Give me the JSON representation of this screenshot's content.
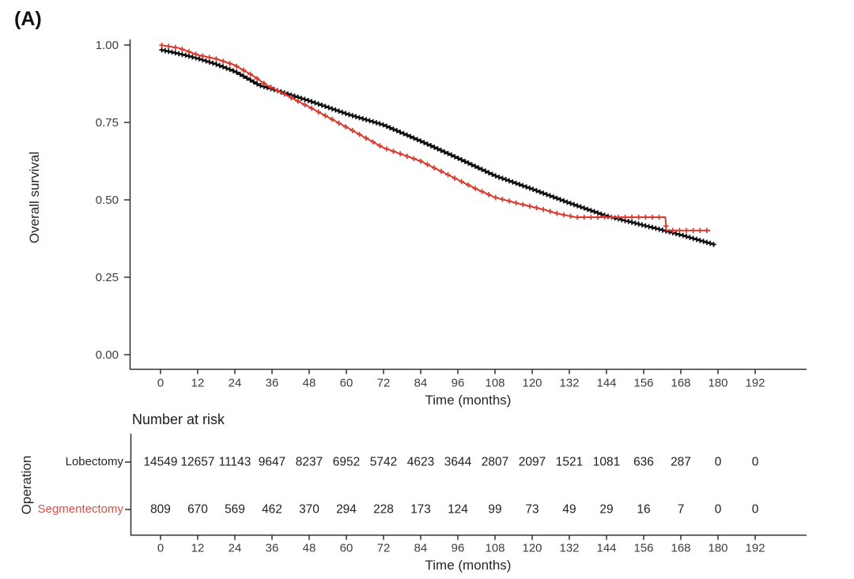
{
  "figure": {
    "panel_label": "(A)"
  },
  "chart_data": {
    "type": "line",
    "subtype": "kaplan-meier-survival",
    "title": "",
    "xlabel": "Time (months)",
    "ylabel": "Overall survival",
    "xlim": [
      0,
      198
    ],
    "ylim": [
      0.0,
      1.0
    ],
    "grid": false,
    "legend_position": "none",
    "xticks": [
      0,
      12,
      24,
      36,
      48,
      60,
      72,
      84,
      96,
      108,
      120,
      132,
      144,
      156,
      168,
      180,
      192
    ],
    "ytick_values": [
      1.0,
      0.75,
      0.5,
      0.25,
      0.0
    ],
    "ytick_labels": [
      "1.00",
      "0.75",
      "0.50",
      "0.25",
      "0.00"
    ],
    "series": [
      {
        "name": "Lobectomy",
        "color": "#0d0d0d",
        "censor_mark": "plus",
        "censor_interval_months": 1.1,
        "points": [
          [
            0,
            0.985
          ],
          [
            6,
            0.972
          ],
          [
            12,
            0.957
          ],
          [
            18,
            0.938
          ],
          [
            24,
            0.915
          ],
          [
            32,
            0.87
          ],
          [
            36,
            0.858
          ],
          [
            48,
            0.82
          ],
          [
            60,
            0.778
          ],
          [
            72,
            0.742
          ],
          [
            84,
            0.69
          ],
          [
            96,
            0.635
          ],
          [
            108,
            0.578
          ],
          [
            120,
            0.535
          ],
          [
            132,
            0.49
          ],
          [
            144,
            0.448
          ],
          [
            156,
            0.418
          ],
          [
            168,
            0.387
          ],
          [
            179,
            0.355
          ]
        ]
      },
      {
        "name": "Segmentectomy",
        "color": "#d93a30",
        "censor_mark": "plus",
        "censor_interval_months": 2.2,
        "points": [
          [
            0,
            1.0
          ],
          [
            6,
            0.99
          ],
          [
            12,
            0.968
          ],
          [
            18,
            0.955
          ],
          [
            24,
            0.935
          ],
          [
            30,
            0.9
          ],
          [
            34,
            0.872
          ],
          [
            36,
            0.862
          ],
          [
            48,
            0.8
          ],
          [
            60,
            0.735
          ],
          [
            72,
            0.668
          ],
          [
            84,
            0.625
          ],
          [
            96,
            0.565
          ],
          [
            102,
            0.535
          ],
          [
            108,
            0.508
          ],
          [
            116,
            0.487
          ],
          [
            124,
            0.468
          ],
          [
            128,
            0.456
          ],
          [
            134,
            0.444
          ],
          [
            163,
            0.444
          ],
          [
            163.3,
            0.401
          ],
          [
            177.5,
            0.401
          ]
        ]
      }
    ],
    "risk_table": {
      "title": "Number at risk",
      "ylabel": "Operation",
      "xlabel": "Time (months)",
      "times": [
        0,
        12,
        24,
        36,
        48,
        60,
        72,
        84,
        96,
        108,
        120,
        132,
        144,
        156,
        168,
        180,
        192
      ],
      "rows": [
        {
          "label": "Lobectomy",
          "label_color": "#262626",
          "values": [
            14549,
            12657,
            11143,
            9647,
            8237,
            6952,
            5742,
            4623,
            3644,
            2807,
            2097,
            1521,
            1081,
            636,
            287,
            0,
            0
          ]
        },
        {
          "label": "Segmentectomy",
          "label_color": "#dc4f48",
          "values": [
            809,
            670,
            569,
            462,
            370,
            294,
            228,
            173,
            124,
            99,
            73,
            49,
            29,
            16,
            7,
            0,
            0
          ]
        }
      ]
    }
  }
}
